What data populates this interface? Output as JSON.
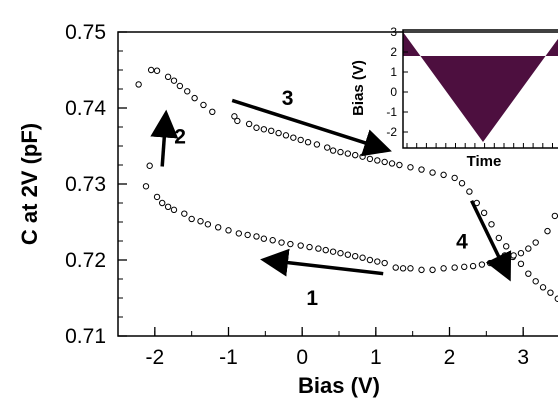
{
  "chart_data": [
    {
      "type": "scatter",
      "xlabel": "Bias (V)",
      "ylabel": "C at 2V  (pF)",
      "xlim": [
        -2.5,
        3.5
      ],
      "ylim": [
        0.71,
        0.75
      ],
      "x_ticks": [
        "-2",
        "-1",
        "0",
        "1",
        "2",
        "3"
      ],
      "y_ticks": [
        "0.71",
        "0.72",
        "0.73",
        "0.74",
        "0.75"
      ],
      "marker": "open-circle",
      "grid": false,
      "series": [
        {
          "values": [
            [
              -2.12,
              0.7297
            ],
            [
              -2.07,
              0.7324
            ],
            [
              -1.97,
              0.7283
            ],
            [
              -1.9,
              0.7275
            ],
            [
              -1.82,
              0.727
            ],
            [
              -1.74,
              0.7266
            ],
            [
              -1.6,
              0.7261
            ],
            [
              -1.5,
              0.7254
            ],
            [
              -1.38,
              0.7251
            ],
            [
              -1.28,
              0.7247
            ],
            [
              -1.14,
              0.7243
            ],
            [
              -1.0,
              0.7239
            ],
            [
              -0.86,
              0.7235
            ],
            [
              -0.74,
              0.7233
            ],
            [
              -0.62,
              0.7231
            ],
            [
              -0.52,
              0.7228
            ],
            [
              -0.4,
              0.7226
            ],
            [
              -0.28,
              0.7223
            ],
            [
              -0.16,
              0.7221
            ],
            [
              -0.02,
              0.7219
            ],
            [
              0.1,
              0.7217
            ],
            [
              0.22,
              0.7215
            ],
            [
              0.32,
              0.7213
            ],
            [
              0.42,
              0.7211
            ],
            [
              0.52,
              0.7209
            ],
            [
              0.62,
              0.7207
            ],
            [
              0.72,
              0.7205
            ],
            [
              0.82,
              0.7203
            ],
            [
              0.92,
              0.72
            ],
            [
              1.02,
              0.7198
            ],
            [
              1.12,
              0.7196
            ],
            [
              1.27,
              0.719
            ],
            [
              1.37,
              0.7189
            ],
            [
              1.47,
              0.7189
            ],
            [
              1.62,
              0.7187
            ],
            [
              1.77,
              0.7187
            ],
            [
              1.92,
              0.7189
            ],
            [
              2.07,
              0.719
            ],
            [
              2.2,
              0.7191
            ],
            [
              2.32,
              0.7192
            ],
            [
              2.44,
              0.7194
            ],
            [
              2.55,
              0.7196
            ],
            [
              2.62,
              0.7197
            ],
            [
              2.7,
              0.7202
            ],
            [
              2.75,
              0.7206
            ],
            [
              2.86,
              0.7204
            ],
            [
              2.97,
              0.7209
            ],
            [
              3.07,
              0.7215
            ],
            [
              3.17,
              0.7223
            ],
            [
              3.33,
              0.7238
            ],
            [
              3.43,
              0.7258
            ],
            [
              -2.22,
              0.7431
            ],
            [
              -2.05,
              0.745
            ],
            [
              -1.97,
              0.7449
            ],
            [
              -1.82,
              0.7441
            ],
            [
              -1.74,
              0.7436
            ],
            [
              -1.66,
              0.7429
            ],
            [
              -1.56,
              0.7422
            ],
            [
              -1.46,
              0.7413
            ],
            [
              -1.34,
              0.7404
            ],
            [
              -1.22,
              0.7395
            ],
            [
              -0.92,
              0.7389
            ],
            [
              -0.88,
              0.7383
            ],
            [
              -0.72,
              0.7379
            ],
            [
              -0.62,
              0.7374
            ],
            [
              -0.52,
              0.7372
            ],
            [
              -0.42,
              0.737
            ],
            [
              -0.32,
              0.7367
            ],
            [
              -0.22,
              0.7364
            ],
            [
              -0.12,
              0.7361
            ],
            [
              -0.02,
              0.7358
            ],
            [
              0.08,
              0.7355
            ],
            [
              0.2,
              0.7352
            ],
            [
              0.34,
              0.7348
            ],
            [
              0.42,
              0.7344
            ],
            [
              0.52,
              0.7342
            ],
            [
              0.62,
              0.734
            ],
            [
              0.72,
              0.7338
            ],
            [
              0.82,
              0.7336
            ],
            [
              0.92,
              0.7333
            ],
            [
              1.02,
              0.7331
            ],
            [
              1.12,
              0.7329
            ],
            [
              1.22,
              0.7327
            ],
            [
              1.32,
              0.7325
            ],
            [
              1.47,
              0.7322
            ],
            [
              1.62,
              0.7319
            ],
            [
              1.77,
              0.7315
            ],
            [
              1.92,
              0.7312
            ],
            [
              2.07,
              0.7308
            ],
            [
              2.17,
              0.7301
            ],
            [
              2.27,
              0.729
            ],
            [
              2.37,
              0.7275
            ],
            [
              2.47,
              0.7262
            ],
            [
              2.57,
              0.7247
            ],
            [
              2.67,
              0.7229
            ],
            [
              2.77,
              0.7218
            ],
            [
              2.87,
              0.7206
            ],
            [
              2.97,
              0.7195
            ],
            [
              3.07,
              0.7182
            ],
            [
              3.17,
              0.7172
            ],
            [
              3.27,
              0.7164
            ],
            [
              3.37,
              0.7157
            ],
            [
              3.47,
              0.7149
            ]
          ]
        }
      ],
      "annotations": [
        {
          "text": "1",
          "from": [
            1.1,
            0.7182
          ],
          "to": [
            -0.5,
            0.72
          ]
        },
        {
          "text": "2",
          "from": [
            -1.9,
            0.7323
          ],
          "to": [
            -1.85,
            0.7391
          ]
        },
        {
          "text": "3",
          "from": [
            -0.95,
            0.741
          ],
          "to": [
            1.15,
            0.7345
          ]
        },
        {
          "text": "4",
          "from": [
            2.3,
            0.7278
          ],
          "to": [
            2.8,
            0.7178
          ]
        }
      ]
    },
    {
      "type": "line",
      "xlabel": "Time",
      "ylabel": "Bias (V)",
      "ylim": [
        -2.8,
        3.1
      ],
      "y_ticks": [
        "-2",
        "-1",
        "0",
        "1",
        "2",
        "3"
      ],
      "fill_color": "#4d0f3f",
      "series": [
        {
          "shape": "triangle wave",
          "min": -2.5,
          "max": 3.0,
          "level": 1.8
        }
      ]
    }
  ]
}
